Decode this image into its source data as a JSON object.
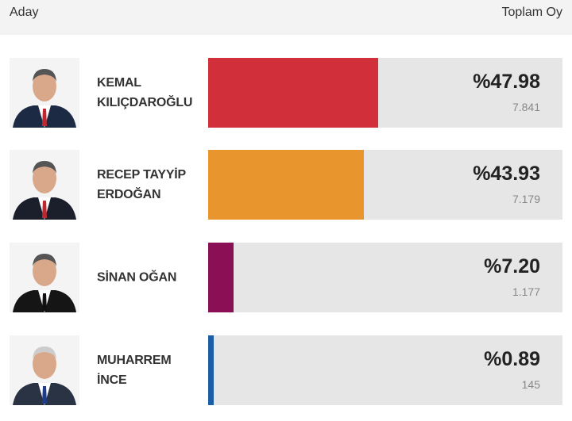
{
  "chart_data": {
    "type": "bar",
    "category_header": "Aday",
    "value_header": "Toplam Oy",
    "categories": [
      "KEMAL KILIÇDAROĞLU",
      "RECEP TAYYİP ERDOĞAN",
      "SİNAN OĞAN",
      "MUHARREM İNCE"
    ],
    "values": [
      47.98,
      43.93,
      7.2,
      0.89
    ],
    "value_labels": [
      "%47.98",
      "%43.93",
      "%7.20",
      "%0.89"
    ],
    "votes": [
      7841,
      7179,
      1177,
      145
    ],
    "vote_labels": [
      "7.841",
      "7.179",
      "1.177",
      "145"
    ],
    "colors": [
      "#d1303b",
      "#e9952d",
      "#8b0f55",
      "#1b5ea6"
    ],
    "xlim": [
      0,
      100
    ]
  }
}
